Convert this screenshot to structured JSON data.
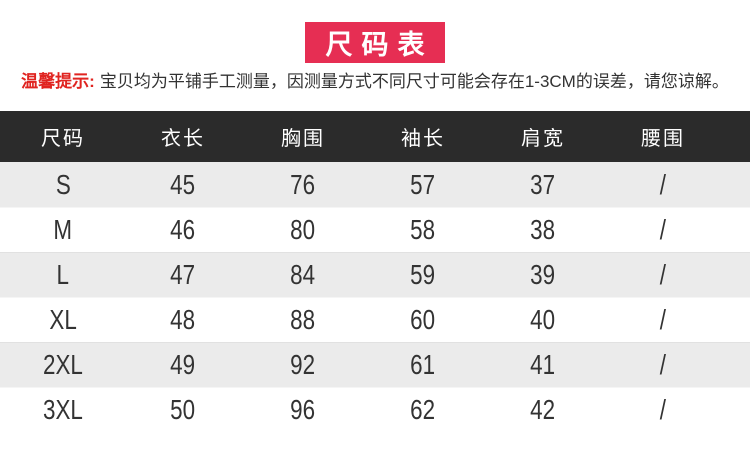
{
  "banner": {
    "title": "尺码表",
    "bg_color": "#e62e53",
    "text_color": "#ffffff"
  },
  "notice": {
    "prefix": "温馨提示:",
    "text": "宝贝均为平铺手工测量，因测量方式不同尺寸可能会存在1-3CM的误差，请您谅解。",
    "prefix_color": "#e02420",
    "text_color": "#333333"
  },
  "chart_data": {
    "type": "table",
    "title": "尺码表",
    "columns": [
      "尺码",
      "衣长",
      "胸围",
      "袖长",
      "肩宽",
      "腰围"
    ],
    "rows": [
      [
        "S",
        "45",
        "76",
        "57",
        "37",
        "/"
      ],
      [
        "M",
        "46",
        "80",
        "58",
        "38",
        "/"
      ],
      [
        "L",
        "47",
        "84",
        "59",
        "39",
        "/"
      ],
      [
        "XL",
        "48",
        "88",
        "60",
        "40",
        "/"
      ],
      [
        "2XL",
        "49",
        "92",
        "61",
        "41",
        "/"
      ],
      [
        "3XL",
        "50",
        "96",
        "62",
        "42",
        "/"
      ]
    ],
    "header_bg": "#2b2b2b",
    "header_text_color": "#ffffff",
    "row_alt_bg": "#ebebeb",
    "row_text_color": "#333333"
  }
}
